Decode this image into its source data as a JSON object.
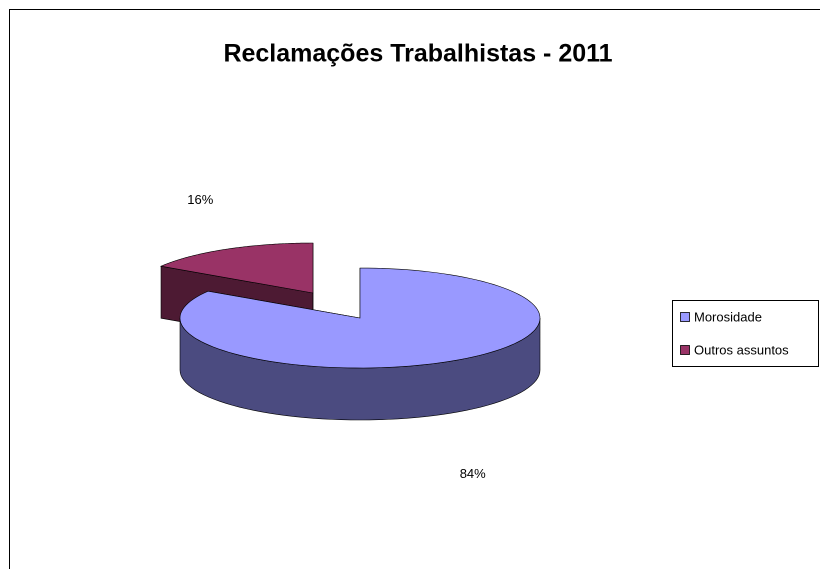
{
  "chart_data": {
    "type": "pie",
    "title": "Reclamações Trabalhistas - 2011",
    "categories": [
      "Morosidade",
      "Outros assuntos"
    ],
    "values": [
      84,
      16
    ],
    "value_labels": [
      "84%",
      "16%"
    ],
    "colors": [
      "#9999ff",
      "#993366"
    ],
    "side_colors": [
      "#4b4b80",
      "#4d1a33"
    ],
    "legend": "right"
  }
}
